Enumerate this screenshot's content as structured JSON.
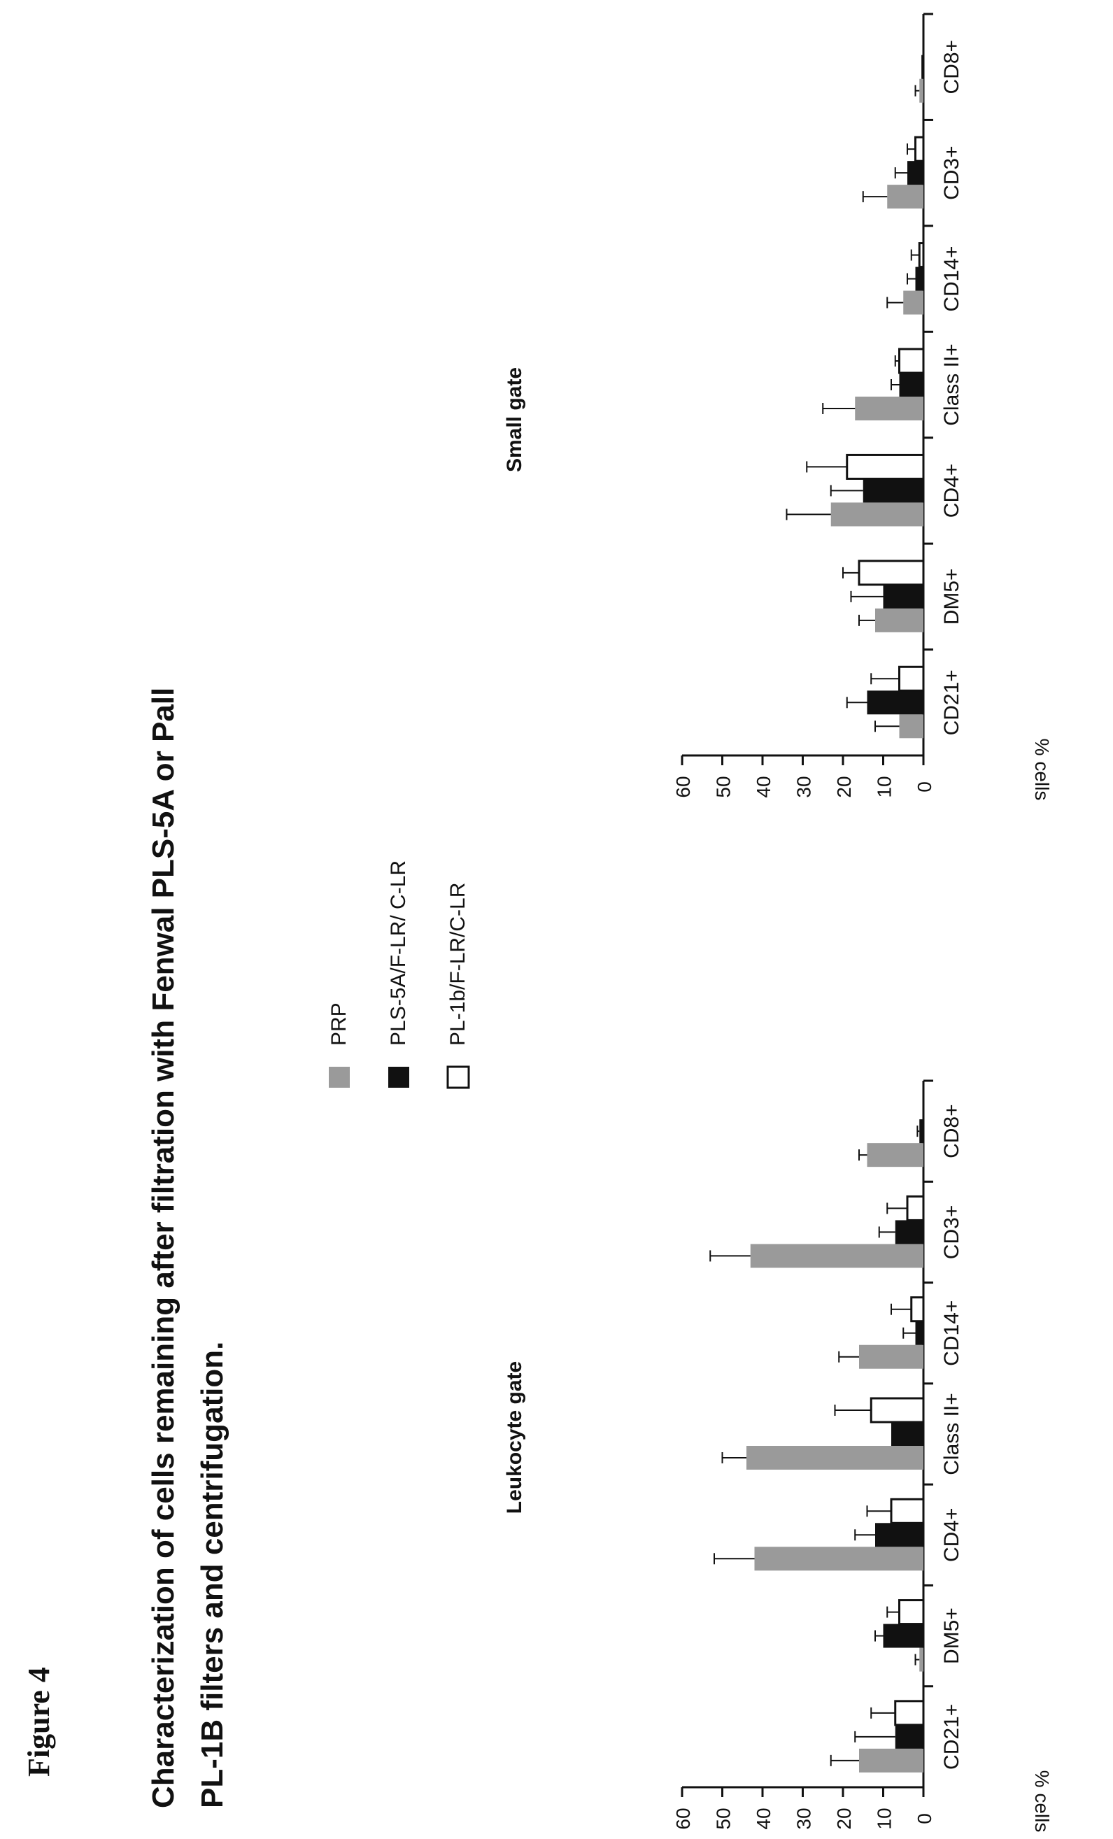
{
  "figure_label": "Figure 4",
  "title_line1": "Characterization of cells remaining after filtration with Fenwal PLS-5A or Pall",
  "title_line2": "PL-1B filters and centrifugation.",
  "legend": [
    {
      "label": "PRP",
      "color": "#9a9a9a"
    },
    {
      "label": "PLS-5A/F-LR/ C-LR",
      "color": "#111111"
    },
    {
      "label": "PL-1b/F-LR/C-LR",
      "color": "#ffffff"
    }
  ],
  "chart_data": [
    {
      "type": "bar",
      "title": "Leukocyte gate",
      "ylabel": "% cells",
      "ylim": [
        0,
        60
      ],
      "yticks": [
        "0",
        "10",
        "20",
        "30",
        "40",
        "50",
        "60"
      ],
      "categories": [
        "CD21+",
        "DM5+",
        "CD4+",
        "Class II+",
        "CD14+",
        "CD3+",
        "CD8+"
      ],
      "series": [
        {
          "name": "PRP",
          "values": [
            16,
            1,
            42,
            44,
            16,
            43,
            14
          ],
          "errors": [
            7,
            1,
            10,
            6,
            5,
            10,
            2
          ]
        },
        {
          "name": "PLS-5A/F-LR/ C-LR",
          "values": [
            7,
            10,
            12,
            8,
            2,
            7,
            1
          ],
          "errors": [
            10,
            2,
            5,
            0,
            3,
            4,
            0.5
          ]
        },
        {
          "name": "PL-1b/F-LR/C-LR",
          "values": [
            7,
            6,
            8,
            13,
            3,
            4,
            0
          ],
          "errors": [
            6,
            3,
            6,
            9,
            5,
            5,
            0
          ]
        }
      ]
    },
    {
      "type": "bar",
      "title": "Small gate",
      "ylabel": "% cells",
      "ylim": [
        0,
        60
      ],
      "yticks": [
        "0",
        "10",
        "20",
        "30",
        "40",
        "50",
        "60"
      ],
      "categories": [
        "CD21+",
        "DM5+",
        "CD4+",
        "Class II+",
        "CD14+",
        "CD3+",
        "CD8+"
      ],
      "series": [
        {
          "name": "PRP",
          "values": [
            6,
            12,
            23,
            17,
            5,
            9,
            1
          ],
          "errors": [
            6,
            4,
            11,
            8,
            4,
            6,
            1
          ]
        },
        {
          "name": "PLS-5A/F-LR/ C-LR",
          "values": [
            14,
            10,
            15,
            6,
            2,
            4,
            0.5
          ],
          "errors": [
            5,
            8,
            8,
            2,
            2,
            3,
            0
          ]
        },
        {
          "name": "PL-1b/F-LR/C-LR",
          "values": [
            6,
            16,
            19,
            6,
            1,
            2,
            0
          ],
          "errors": [
            7,
            4,
            10,
            1,
            2,
            2,
            0
          ]
        }
      ]
    }
  ]
}
